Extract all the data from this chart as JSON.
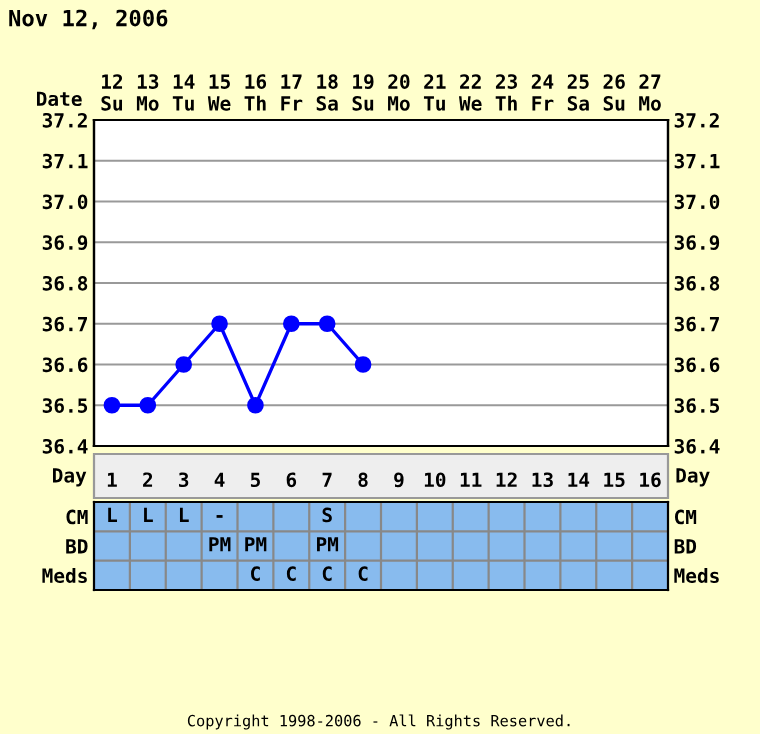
{
  "chart_data": [
    {
      "type": "line",
      "title": "Nov 12, 2006",
      "xlabel": "Date",
      "categories": [
        "12\nSu",
        "13\nMo",
        "14\nTu",
        "15\nWe",
        "16\nTh",
        "17\nFr",
        "18\nSa",
        "19\nSu",
        "20\nMo",
        "21\nTu",
        "22\nWe",
        "23\nTh",
        "24\nFr",
        "25\nSa",
        "26\nSu",
        "27\nMo"
      ],
      "series": [
        {
          "color": "#0000ff",
          "values": [
            36.5,
            36.5,
            36.6,
            36.7,
            36.5,
            36.7,
            36.7,
            36.6,
            null,
            null,
            null,
            null,
            null,
            null,
            null,
            null
          ]
        }
      ],
      "ylim": [
        36.4,
        37.2
      ],
      "yticks": [
        {
          "value": 36.4,
          "label": "36.4"
        },
        {
          "value": 36.5,
          "label": "36.5"
        },
        {
          "value": 36.6,
          "label": "36.6"
        },
        {
          "value": 36.7,
          "label": "36.7"
        },
        {
          "value": 36.8,
          "label": "36.8"
        },
        {
          "value": 36.9,
          "label": "36.9"
        },
        {
          "value": 37.0,
          "label": "37.0"
        },
        {
          "value": 37.1,
          "label": "37.1"
        },
        {
          "value": 37.2,
          "label": "37.2"
        }
      ],
      "y2lim": [
        36.4,
        37.2
      ],
      "y2ticks": [
        {
          "value": 36.4,
          "label": "36.4"
        },
        {
          "value": 36.5,
          "label": "36.5"
        },
        {
          "value": 36.6,
          "label": "36.6"
        },
        {
          "value": 36.7,
          "label": "36.7"
        },
        {
          "value": 36.8,
          "label": "36.8"
        },
        {
          "value": 36.9,
          "label": "36.9"
        },
        {
          "value": 37.0,
          "label": "37.0"
        },
        {
          "value": 37.1,
          "label": "37.1"
        },
        {
          "value": 37.2,
          "label": "37.2"
        }
      ],
      "grid": true,
      "marker": "circle",
      "line_style": "solid"
    },
    {
      "type": "heatmap",
      "xlabel": "Day",
      "cells": [
        [
          null,
          null,
          null,
          null,
          null,
          null,
          null,
          null,
          null,
          null,
          null,
          null,
          null,
          null,
          null,
          null
        ],
        [
          null,
          null,
          null,
          null,
          null,
          null,
          null,
          null,
          null,
          null,
          null,
          null,
          null,
          null,
          null,
          null
        ],
        [
          null,
          null,
          null,
          null,
          null,
          null,
          null,
          null,
          null,
          null,
          null,
          null,
          null,
          null,
          null,
          null
        ]
      ],
      "categories": [
        "1",
        "2",
        "3",
        "4",
        "5",
        "6",
        "7",
        "8",
        "9",
        "10",
        "11",
        "12",
        "13",
        "14",
        "15",
        "16"
      ],
      "y_categories": [
        "CM",
        "BD",
        "Meds"
      ],
      "cell_labels": [
        [
          "L",
          "L",
          "L",
          "-",
          null,
          null,
          "S",
          null,
          null,
          null,
          null,
          null,
          null,
          null,
          null,
          null
        ],
        [
          null,
          null,
          null,
          "PM",
          "PM",
          null,
          "PM",
          null,
          null,
          null,
          null,
          null,
          null,
          null,
          null,
          null
        ],
        [
          null,
          null,
          null,
          null,
          "C",
          "C",
          "C",
          "C",
          null,
          null,
          null,
          null,
          null,
          null,
          null,
          null
        ]
      ],
      "annotations": [
        "Copyright 1998-2006 - All Rights Reserved."
      ]
    }
  ]
}
